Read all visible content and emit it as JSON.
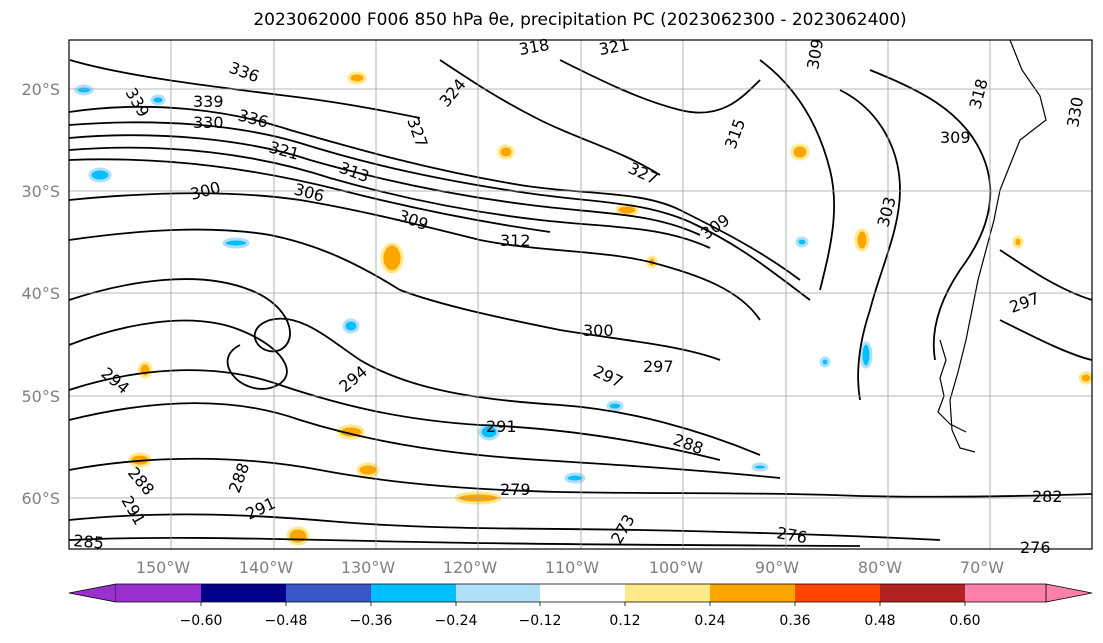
{
  "title": "2023062000 F006 850 hPa θe, precipitation PC (2023062300 - 2023062400)",
  "lat_labels": [
    "20°S",
    "30°S",
    "40°S",
    "50°S",
    "60°S"
  ],
  "lon_labels": [
    "150°W",
    "140°W",
    "130°W",
    "120°W",
    "110°W",
    "100°W",
    "90°W",
    "80°W",
    "70°W"
  ],
  "colorbar": {
    "ticks": [
      "−0.60",
      "−0.48",
      "−0.36",
      "−0.24",
      "−0.12",
      "0.12",
      "0.24",
      "0.36",
      "0.48",
      "0.60"
    ],
    "colors": [
      "#9a31cf",
      "#00008b",
      "#3a56c9",
      "#00bfff",
      "#b0e0f8",
      "#ffffff",
      "#ffe98a",
      "#ffa500",
      "#ff4500",
      "#b22222",
      "#ff80ab"
    ]
  },
  "contour_labels": [
    "339",
    "336",
    "330",
    "321",
    "339",
    "336",
    "327",
    "324",
    "321",
    "318",
    "309",
    "315",
    "327",
    "309",
    "303",
    "318",
    "330",
    "300",
    "306",
    "313",
    "309",
    "312",
    "309",
    "300",
    "297",
    "297",
    "294",
    "294",
    "291",
    "288",
    "288",
    "291",
    "288",
    "291",
    "279",
    "273",
    "276",
    "282",
    "276",
    "297",
    "285"
  ],
  "colors": {
    "contour": "#000000",
    "grid": "#a0a0a0",
    "axis_label": "#808080"
  }
}
